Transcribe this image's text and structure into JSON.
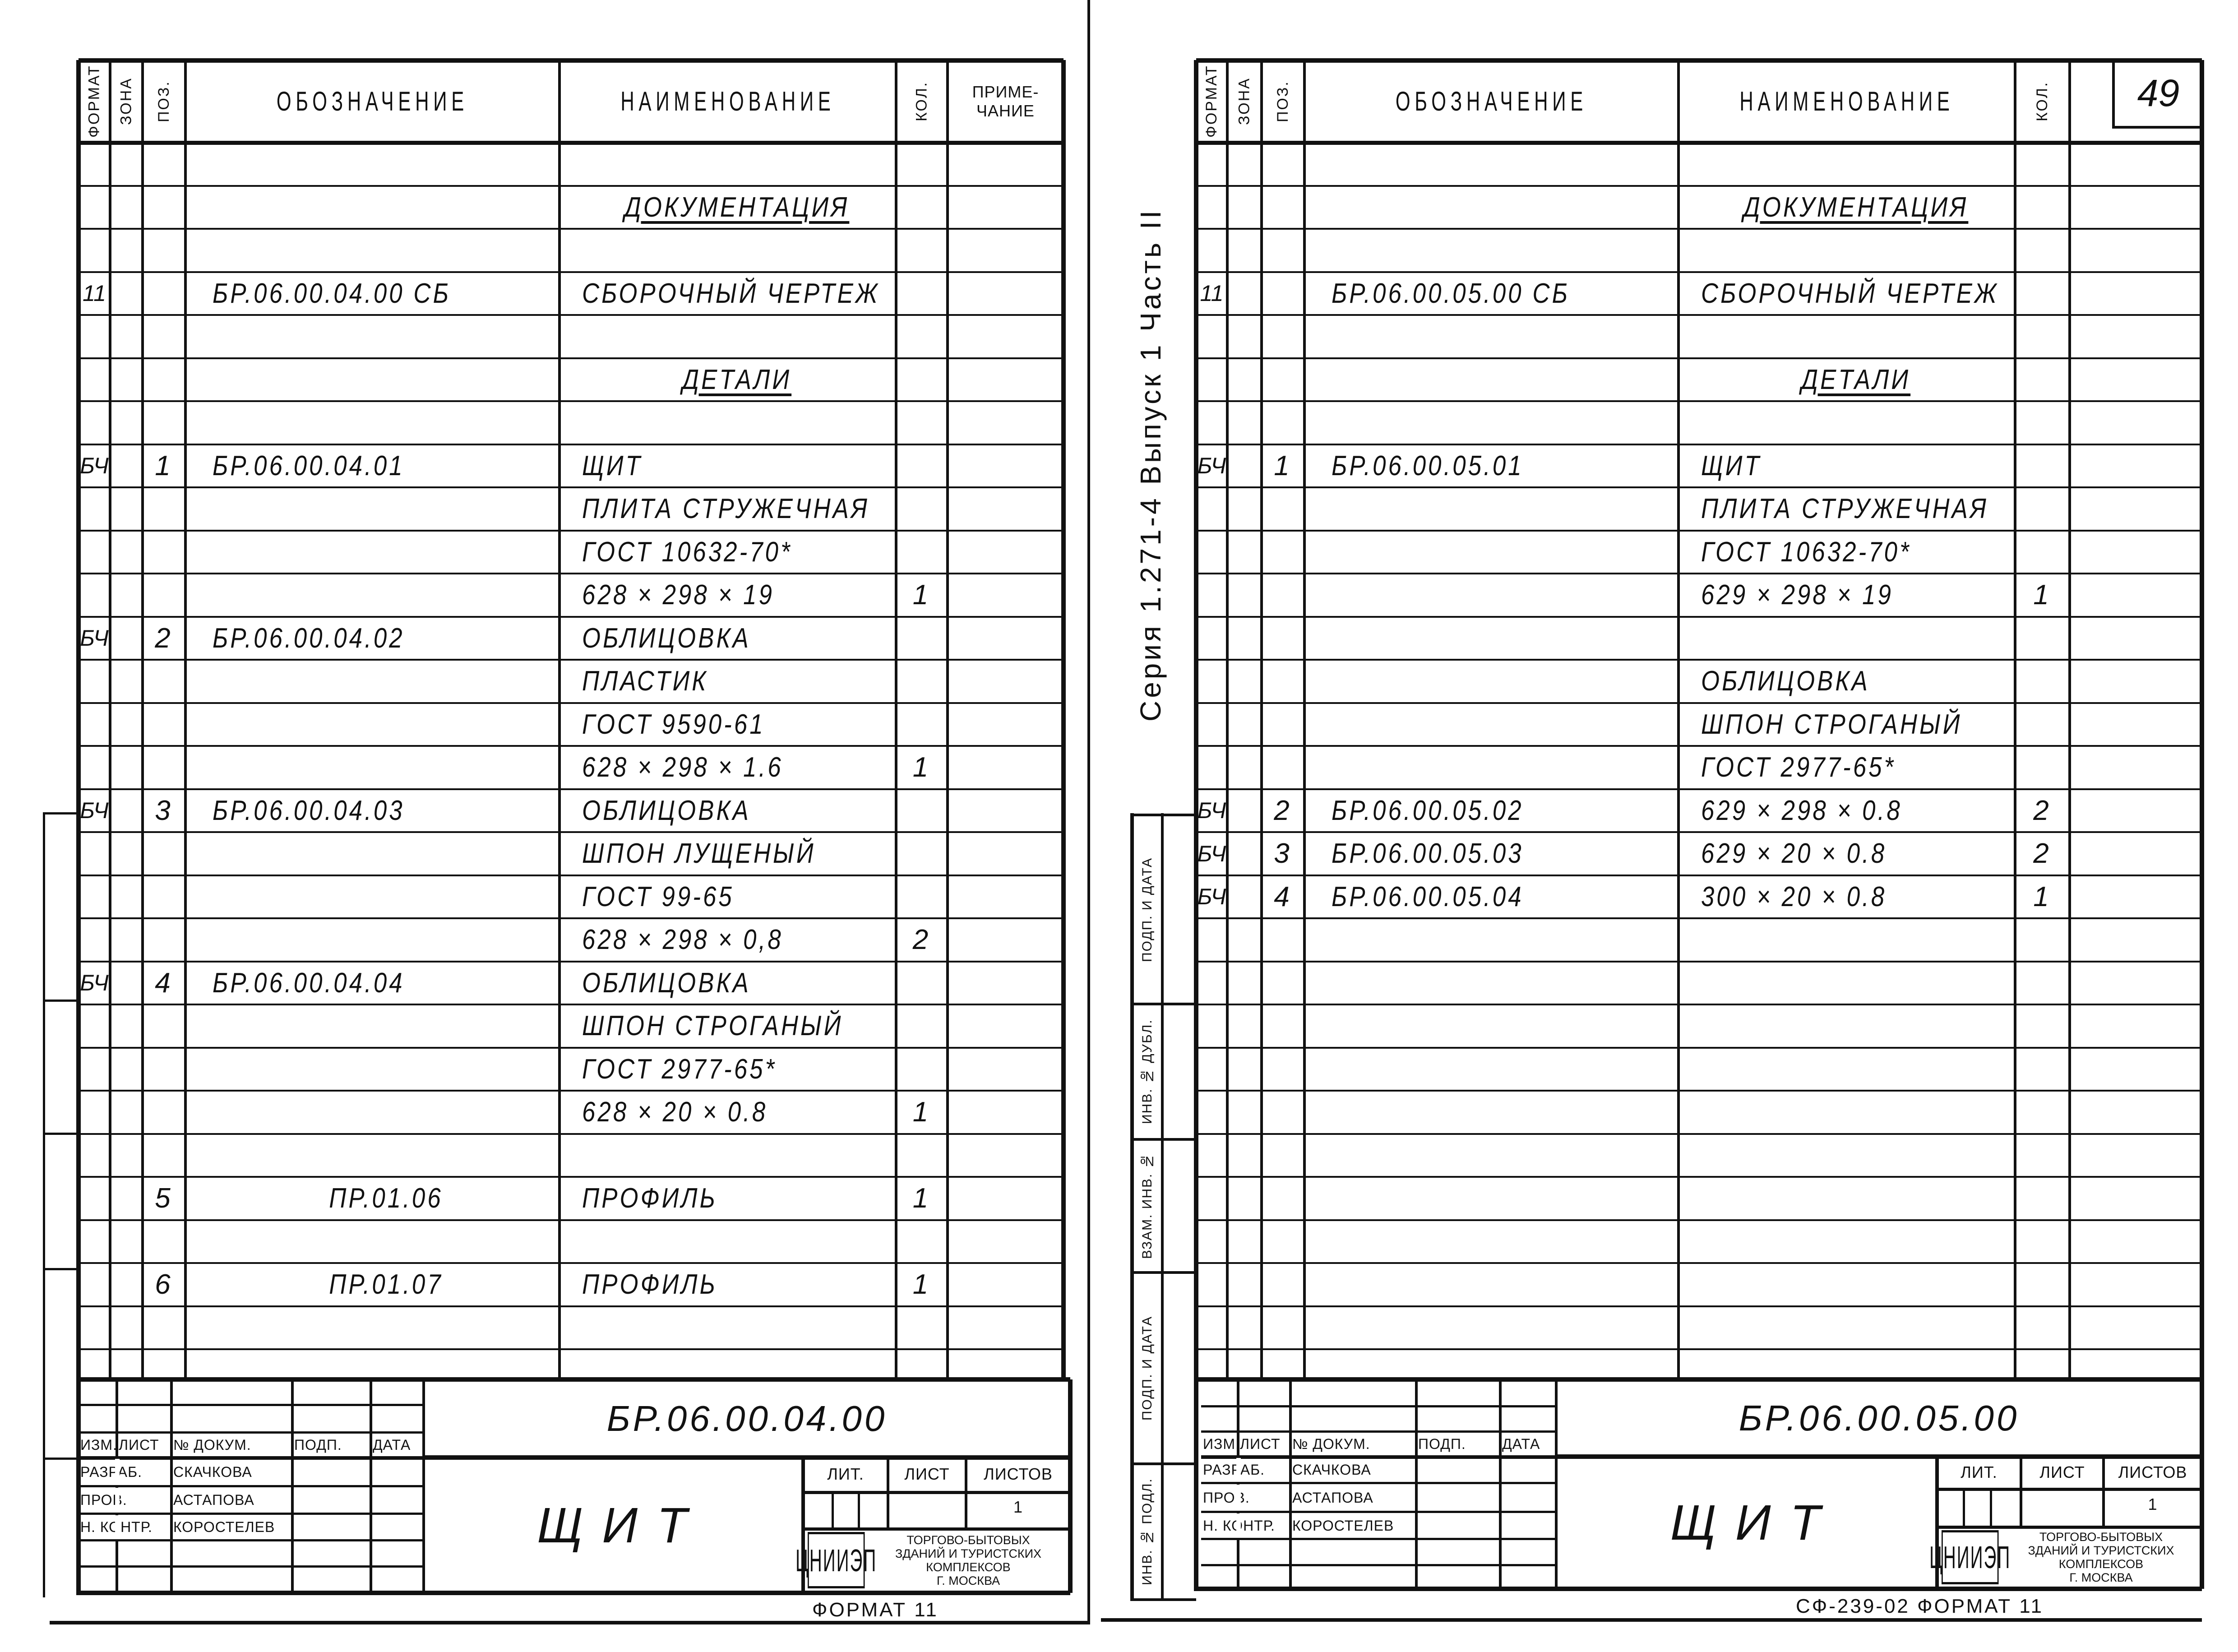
{
  "margin": {
    "series_label": "Серия 1.271-4   Выпуск 1  Часть II",
    "boxes": [
      "Инв. № подл.",
      "Подп. и дата",
      "Взам. инв. №",
      "Инв. № дубл.",
      "Подп. и дата"
    ]
  },
  "page_number": "49",
  "sheets": [
    {
      "header": {
        "format": "Формат",
        "zone": "Зона",
        "pos": "Поз.",
        "designation": "Обозначение",
        "name": "Наименование",
        "qty": "Кол.",
        "note": "Приме-чание"
      },
      "rows": [
        {},
        {
          "name": "Документация",
          "heading": true
        },
        {},
        {
          "format": "11",
          "designation": "БР.06.00.04.00 СБ",
          "name": "Сборочный чертеж"
        },
        {},
        {
          "name": "Детали",
          "heading": true
        },
        {},
        {
          "format": "БЧ",
          "pos": "1",
          "designation": "БР.06.00.04.01",
          "name": "Щит"
        },
        {
          "name": "Плита стружечная"
        },
        {
          "name": "ГОСТ 10632-70*"
        },
        {
          "name": "628 × 298 × 19",
          "qty": "1"
        },
        {
          "format": "БЧ",
          "pos": "2",
          "designation": "БР.06.00.04.02",
          "name": "Облицовка"
        },
        {
          "name": "Пластик"
        },
        {
          "name": "ГОСТ 9590-61"
        },
        {
          "name": "628 × 298 × 1.6",
          "qty": "1"
        },
        {
          "format": "БЧ",
          "pos": "3",
          "designation": "БР.06.00.04.03",
          "name": "Облицовка"
        },
        {
          "name": "Шпон лущеный"
        },
        {
          "name": "ГОСТ 99-65"
        },
        {
          "name": "628 × 298 × 0,8",
          "qty": "2"
        },
        {
          "format": "БЧ",
          "pos": "4",
          "designation": "БР.06.00.04.04",
          "name": "Облицовка"
        },
        {
          "name": "Шпон строганый"
        },
        {
          "name": "ГОСТ 2977-65*"
        },
        {
          "name": "628 × 20 × 0.8",
          "qty": "1"
        },
        {},
        {
          "pos": "5",
          "designation": "ПР.01.06",
          "name": "Профиль",
          "qty": "1"
        },
        {},
        {
          "pos": "6",
          "designation": "ПР.01.07",
          "name": "Профиль",
          "qty": "1"
        },
        {},
        {}
      ],
      "title_block": {
        "designation": "БР.06.00.04.00",
        "title": "Щ и т",
        "columns": [
          "Изм.",
          "Лист",
          "№ докум.",
          "Подп.",
          "Дата"
        ],
        "staff": [
          {
            "role": "Разраб.",
            "name": "Скачкова"
          },
          {
            "role": "Пров.",
            "name": "Астапова"
          },
          {
            "role": "Н. контр.",
            "name": "Коростелев"
          }
        ],
        "lit_labels": [
          "Лит.",
          "Лист",
          "Листов"
        ],
        "sheets_total": "1",
        "org_logo": "ЦНИИЭП",
        "org_lines": [
          "Торгово-бытовых",
          "зданий и туристских",
          "комплексов",
          "г. Москва"
        ],
        "footer": "Формат 11"
      }
    },
    {
      "header": {
        "format": "Формат",
        "zone": "Зона",
        "pos": "Поз.",
        "designation": "Обозначение",
        "name": "Наименование",
        "qty": "Кол."
      },
      "rows": [
        {},
        {
          "name": "Документация",
          "heading": true
        },
        {},
        {
          "format": "11",
          "designation": "БР.06.00.05.00 СБ",
          "name": "Сборочный чертеж"
        },
        {},
        {
          "name": "Детали",
          "heading": true
        },
        {},
        {
          "format": "БЧ",
          "pos": "1",
          "designation": "БР.06.00.05.01",
          "name": "Щит"
        },
        {
          "name": "Плита стружечная"
        },
        {
          "name": "ГОСТ 10632-70*"
        },
        {
          "name": "629 × 298 × 19",
          "qty": "1"
        },
        {},
        {
          "name": "Облицовка"
        },
        {
          "name": "Шпон строганый"
        },
        {
          "name": "ГОСТ 2977-65*"
        },
        {
          "format": "БЧ",
          "pos": "2",
          "designation": "БР.06.00.05.02",
          "name": "629 × 298 × 0.8",
          "qty": "2"
        },
        {
          "format": "БЧ",
          "pos": "3",
          "designation": "БР.06.00.05.03",
          "name": "629 × 20 × 0.8",
          "qty": "2"
        },
        {
          "format": "БЧ",
          "pos": "4",
          "designation": "БР.06.00.05.04",
          "name": "300 × 20 × 0.8",
          "qty": "1"
        },
        {},
        {},
        {},
        {},
        {},
        {},
        {},
        {},
        {},
        {},
        {}
      ],
      "title_block": {
        "designation": "БР.06.00.05.00",
        "title": "Щ и т",
        "columns": [
          "Изм.",
          "Лист",
          "№ докум.",
          "Подп.",
          "Дата"
        ],
        "staff": [
          {
            "role": "Разраб.",
            "name": "Скачкова"
          },
          {
            "role": "Пров.",
            "name": "Астапова"
          },
          {
            "role": "Н. контр.",
            "name": "Коростелев"
          }
        ],
        "lit_labels": [
          "Лит.",
          "Лист",
          "Листов"
        ],
        "sheets_total": "1",
        "org_logo": "ЦНИИЭП",
        "org_lines": [
          "Торгово-бытовых",
          "зданий и туристских",
          "комплексов",
          "г. Москва"
        ],
        "footer": "СФ-239-02 Формат 11"
      }
    }
  ]
}
